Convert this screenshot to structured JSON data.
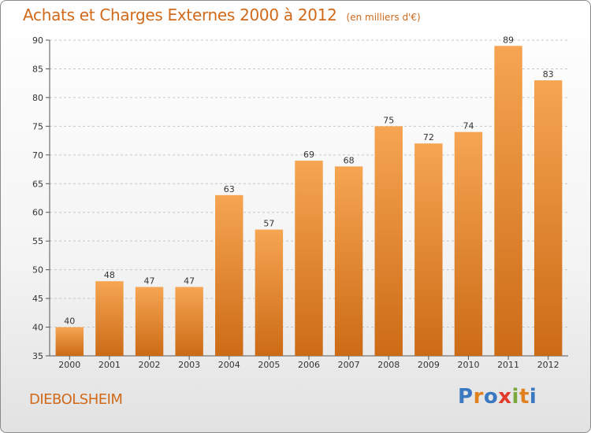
{
  "title": "Achats et Charges Externes 2000 à 2012",
  "subtitle": "(en milliers d'€)",
  "town": "DIEBOLSHEIM",
  "logo": {
    "letters": [
      "P",
      "r",
      "o",
      "x",
      "i",
      "t",
      "i"
    ],
    "colors": [
      "#3b78c2",
      "#e0801e",
      "#3b78c2",
      "#e23a2b",
      "#7aa83a",
      "#e0801e",
      "#3b78c2"
    ]
  },
  "colors": {
    "bar_top": "#f6a552",
    "bar_bottom": "#cc6b16",
    "text_accent": "#d0691a"
  },
  "chart_data": {
    "type": "bar",
    "categories": [
      "2000",
      "2001",
      "2002",
      "2003",
      "2004",
      "2005",
      "2006",
      "2007",
      "2008",
      "2009",
      "2010",
      "2011",
      "2012"
    ],
    "values": [
      40,
      48,
      47,
      47,
      63,
      57,
      69,
      68,
      75,
      72,
      74,
      89,
      83
    ],
    "title": "Achats et Charges Externes 2000 à 2012",
    "xlabel": "",
    "ylabel": "",
    "ylim": [
      35,
      90
    ],
    "yticks": [
      35,
      40,
      45,
      50,
      55,
      60,
      65,
      70,
      75,
      80,
      85,
      90
    ],
    "grid": true
  }
}
